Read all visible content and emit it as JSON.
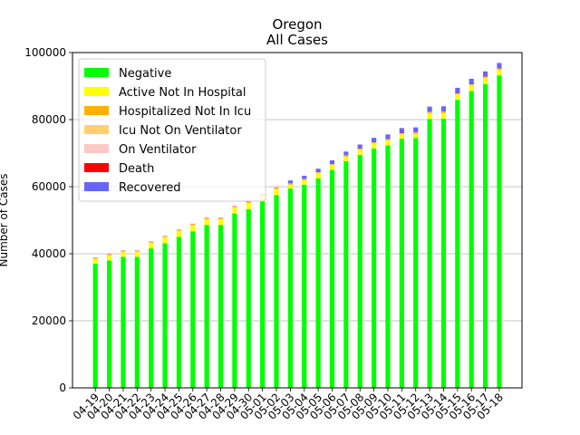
{
  "chart_data": {
    "type": "bar",
    "stacked": true,
    "title": "Oregon",
    "subtitle": "All Cases",
    "xlabel": "",
    "ylabel": "Number of Cases",
    "ylim": [
      0,
      100000
    ],
    "yticks": [
      0,
      20000,
      40000,
      60000,
      80000,
      100000
    ],
    "grid": "horizontal",
    "legend_position": "top-left",
    "categories": [
      "04-19",
      "04-20",
      "04-21",
      "04-22",
      "04-23",
      "04-24",
      "04-25",
      "04-26",
      "04-27",
      "04-28",
      "04-29",
      "04-30",
      "05-01",
      "05-02",
      "05-03",
      "05-04",
      "05-05",
      "05-06",
      "05-07",
      "05-08",
      "05-09",
      "05-10",
      "05-11",
      "05-12",
      "05-13",
      "05-14",
      "05-15",
      "05-16",
      "05-17",
      "05-18"
    ],
    "series": [
      {
        "name": "Negative",
        "color": "#00ff00",
        "values": [
          37000,
          38000,
          39100,
          39100,
          41600,
          43100,
          45000,
          46700,
          48600,
          48600,
          52000,
          53300,
          55600,
          57500,
          59500,
          60600,
          62500,
          65000,
          67600,
          69500,
          71400,
          72300,
          74300,
          74500,
          80200,
          80300,
          85900,
          88500,
          90600,
          93200
        ]
      },
      {
        "name": "Active Not In Hospital",
        "color": "#ffff00",
        "values": [
          1500,
          1500,
          1400,
          1400,
          1600,
          1700,
          1700,
          1800,
          1700,
          1700,
          1700,
          1800,
          1800,
          1800,
          1100,
          1300,
          1500,
          1400,
          1400,
          1500,
          1500,
          1500,
          1300,
          1300,
          1700,
          1700,
          1600,
          1700,
          1800,
          1700
        ]
      },
      {
        "name": "Hospitalized Not In Icu",
        "color": "#ffb000",
        "values": [
          200,
          200,
          200,
          200,
          200,
          200,
          200,
          200,
          200,
          200,
          200,
          200,
          200,
          200,
          200,
          200,
          200,
          200,
          200,
          200,
          200,
          200,
          200,
          200,
          200,
          200,
          200,
          200,
          200,
          200
        ]
      },
      {
        "name": "Icu Not On Ventilator",
        "color": "#ffd070",
        "values": [
          100,
          100,
          100,
          100,
          100,
          100,
          100,
          100,
          100,
          100,
          100,
          100,
          100,
          100,
          100,
          100,
          100,
          100,
          100,
          100,
          100,
          100,
          100,
          100,
          100,
          100,
          100,
          100,
          100,
          100
        ]
      },
      {
        "name": "On Ventilator",
        "color": "#ffc8c8",
        "values": [
          50,
          50,
          50,
          50,
          50,
          50,
          50,
          50,
          50,
          50,
          50,
          50,
          50,
          50,
          50,
          50,
          50,
          50,
          50,
          50,
          50,
          50,
          50,
          50,
          50,
          50,
          50,
          50,
          50,
          50
        ]
      },
      {
        "name": "Death",
        "color": "#ff0000",
        "values": [
          80,
          80,
          90,
          90,
          90,
          100,
          100,
          100,
          100,
          100,
          110,
          110,
          110,
          110,
          110,
          110,
          120,
          120,
          120,
          120,
          120,
          130,
          130,
          130,
          130,
          130,
          130,
          140,
          140,
          140
        ]
      },
      {
        "name": "Recovered",
        "color": "#6666ff",
        "values": [
          0,
          0,
          0,
          0,
          0,
          0,
          0,
          0,
          0,
          0,
          0,
          0,
          0,
          0,
          800,
          900,
          900,
          1000,
          1000,
          1100,
          1200,
          1300,
          1400,
          1400,
          1500,
          1500,
          1500,
          1500,
          1500,
          1500
        ]
      }
    ]
  }
}
